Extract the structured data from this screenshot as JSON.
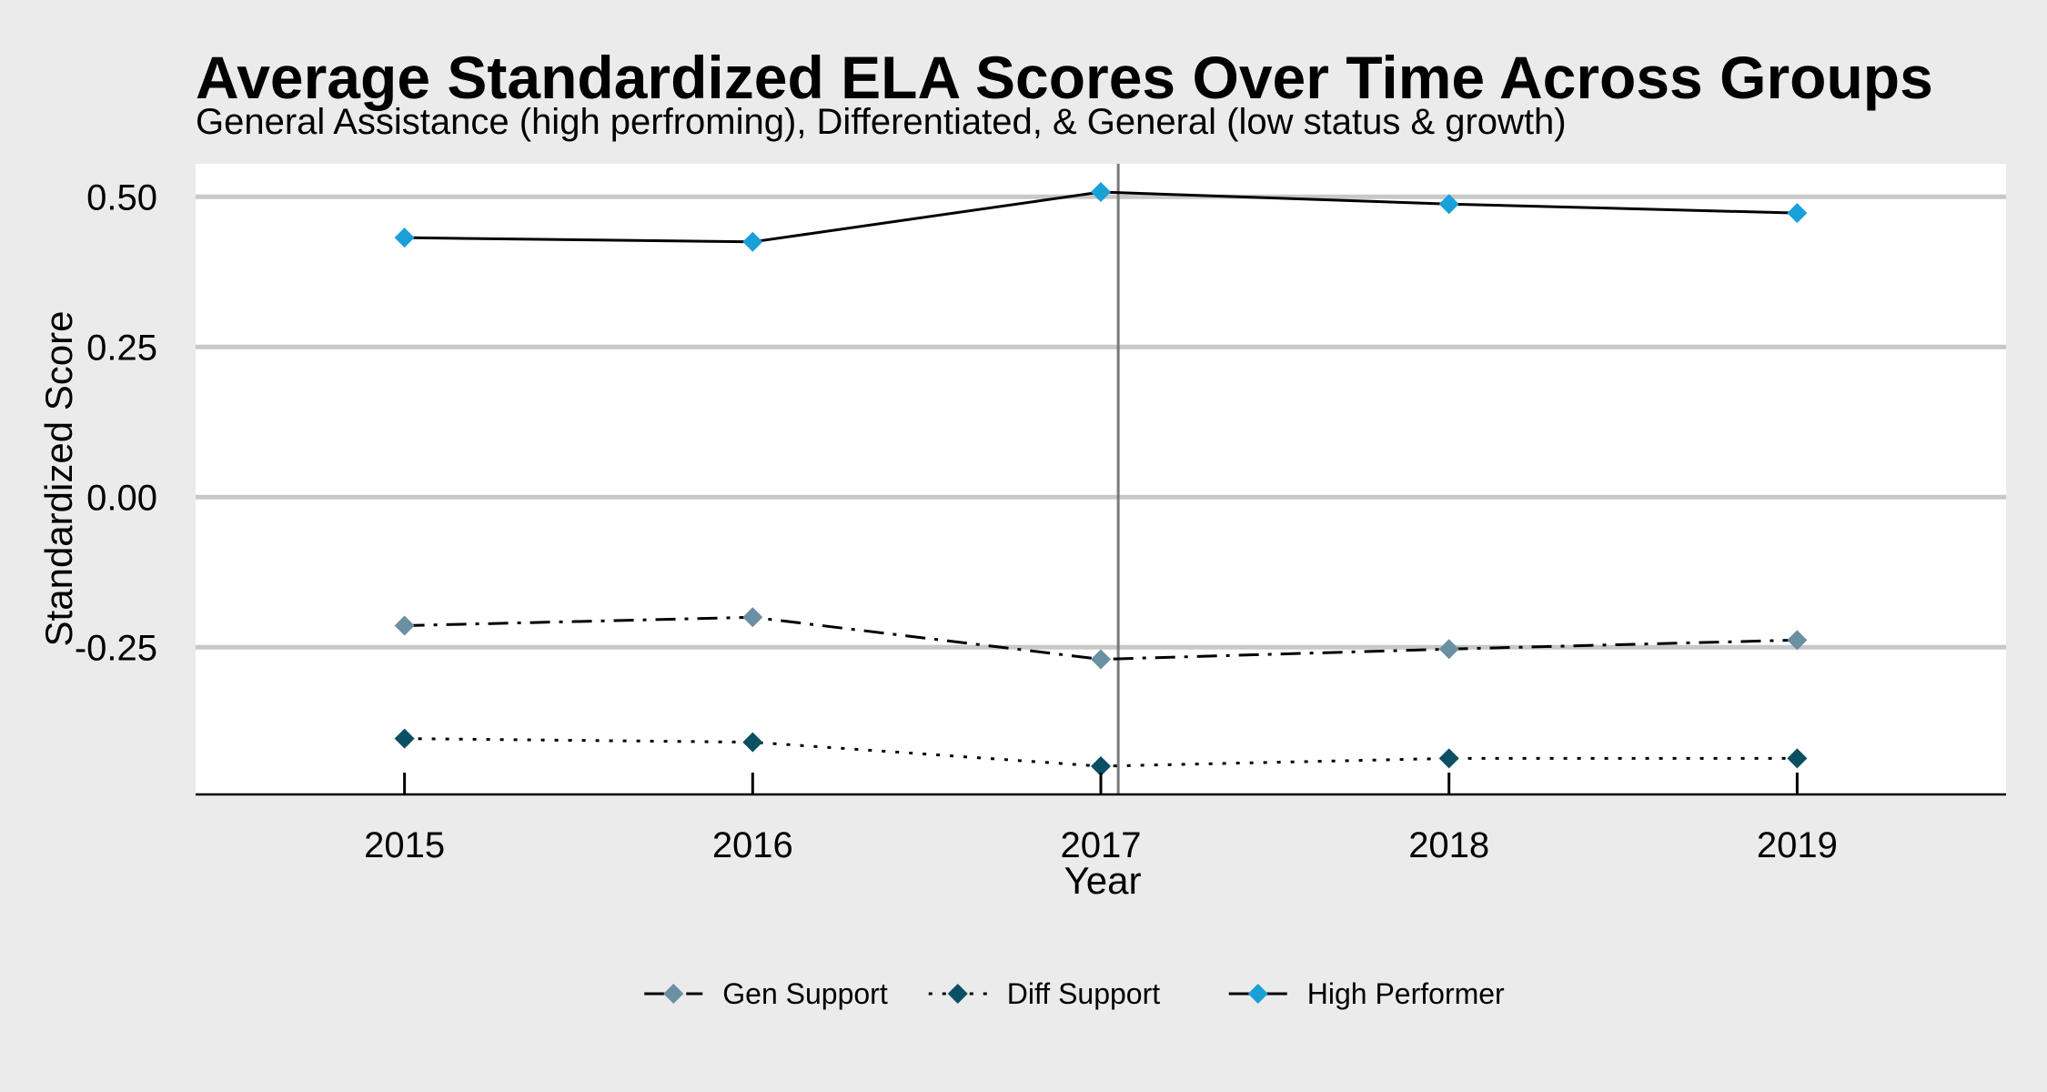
{
  "chart_data": {
    "type": "line",
    "title": "Average Standardized ELA Scores Over Time Across Groups",
    "subtitle": "General Assistance (high perfroming), Differentiated, & General (low status & growth)",
    "xlabel": "Year",
    "ylabel": "Standardized Score",
    "x": [
      2015,
      2016,
      2017,
      2018,
      2019
    ],
    "x_tick_labels": [
      "2015",
      "2016",
      "2017",
      "2018",
      "2019"
    ],
    "x_range": [
      2014.4,
      2019.6
    ],
    "y_ticks": [
      0.5,
      0.25,
      0.0,
      -0.25
    ],
    "y_tick_labels": [
      "0.50",
      "0.25",
      "0.00",
      "-0.25"
    ],
    "ylim": [
      -0.495,
      0.555
    ],
    "grid": "horizontal major lines",
    "vertical_reference_line_x": 2017.05,
    "legend_position": "bottom",
    "series": [
      {
        "name": "Gen Support",
        "values": [
          -0.214,
          -0.2,
          -0.27,
          -0.253,
          -0.238
        ],
        "color": "#6b8fa3",
        "line_style": "dashdot"
      },
      {
        "name": "Diff Support",
        "values": [
          -0.402,
          -0.408,
          -0.448,
          -0.435,
          -0.435
        ],
        "color": "#0b4f62",
        "line_style": "dotted"
      },
      {
        "name": "High Performer",
        "values": [
          0.432,
          0.425,
          0.508,
          0.488,
          0.473
        ],
        "color": "#1aa0d8",
        "line_style": "solid"
      }
    ]
  }
}
